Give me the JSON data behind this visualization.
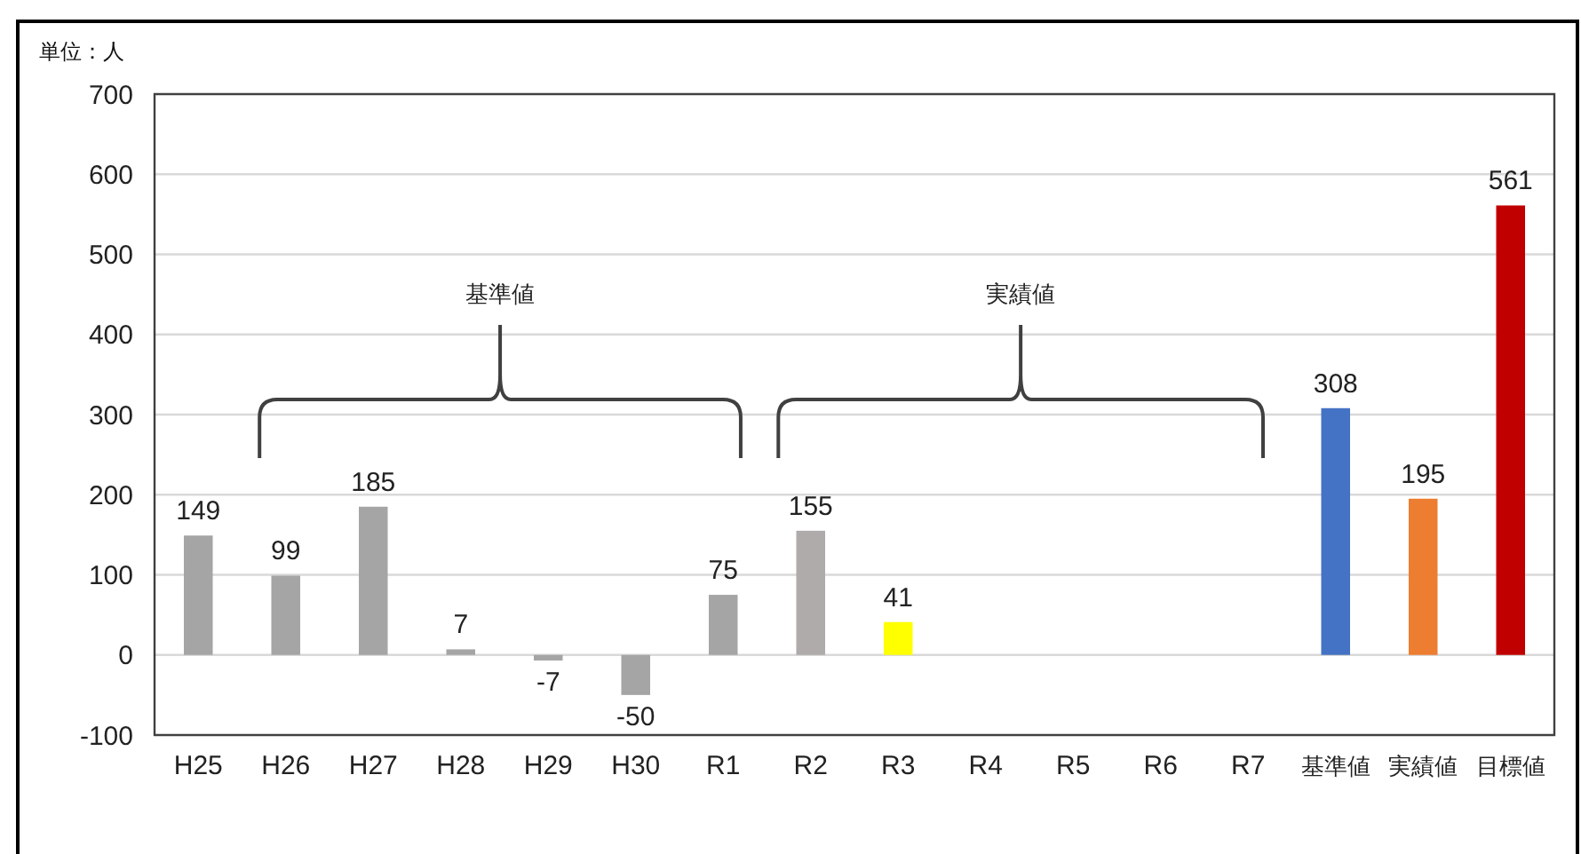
{
  "chart_data": {
    "type": "bar",
    "ylabel": "単位：人",
    "categories": [
      "H25",
      "H26",
      "H27",
      "H28",
      "H29",
      "H30",
      "R1",
      "R2",
      "R3",
      "R4",
      "R5",
      "R6",
      "R7",
      "基準値",
      "実績値",
      "目標値"
    ],
    "values": [
      149,
      99,
      185,
      7,
      -7,
      -50,
      75,
      155,
      41,
      null,
      null,
      null,
      null,
      308,
      195,
      561
    ],
    "colors": [
      "#a5a5a5",
      "#a5a5a5",
      "#a5a5a5",
      "#a5a5a5",
      "#a5a5a5",
      "#a5a5a5",
      "#a5a5a5",
      "#afabab",
      "#ffff00",
      null,
      null,
      null,
      null,
      "#4472c4",
      "#ed7d31",
      "#c00000"
    ],
    "ylim": [
      -100,
      700
    ],
    "yticks": [
      -100,
      0,
      100,
      200,
      300,
      400,
      500,
      600,
      700
    ],
    "grid": "y",
    "data_labels": true,
    "annotations": [
      "基準値",
      "実績値"
    ]
  }
}
